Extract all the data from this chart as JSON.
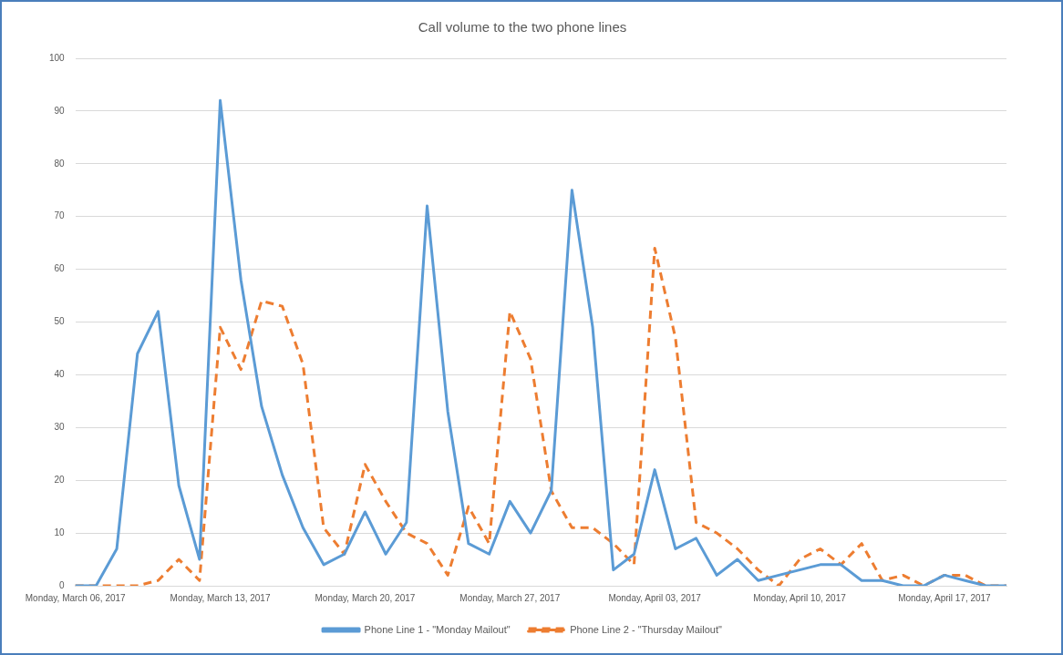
{
  "chart_data": {
    "type": "line",
    "title": "Call volume to the two phone lines",
    "categories": [
      "Monday, March 06, 2017",
      null,
      null,
      null,
      null,
      null,
      null,
      "Monday, March 13, 2017",
      null,
      null,
      null,
      null,
      null,
      null,
      "Monday, March 20, 2017",
      null,
      null,
      null,
      null,
      null,
      null,
      "Monday, March 27, 2017",
      null,
      null,
      null,
      null,
      null,
      null,
      "Monday, April 03, 2017",
      null,
      null,
      null,
      null,
      null,
      null,
      "Monday, April 10, 2017",
      null,
      null,
      null,
      null,
      null,
      null,
      "Monday, April 17, 2017",
      null,
      null,
      null
    ],
    "series": [
      {
        "name": "Phone Line 1 - \"Monday Mailout\"",
        "color": "#5b9bd5",
        "line_style": "solid",
        "values": [
          0,
          0,
          7,
          44,
          52,
          19,
          5,
          92,
          58,
          34,
          21,
          11,
          4,
          6,
          14,
          6,
          12,
          72,
          33,
          8,
          6,
          16,
          10,
          18,
          75,
          49,
          3,
          6,
          22,
          7,
          9,
          2,
          5,
          1,
          2,
          3,
          4,
          4,
          1,
          1,
          0,
          0,
          2,
          1,
          0,
          0
        ]
      },
      {
        "name": "Phone Line 2 - \"Thursday Mailout\"",
        "color": "#ed7d31",
        "line_style": "dashed",
        "values": [
          0,
          0,
          0,
          0,
          1,
          5,
          1,
          49,
          41,
          54,
          53,
          42,
          11,
          6,
          23,
          16,
          10,
          8,
          2,
          15,
          8,
          52,
          43,
          18,
          11,
          11,
          8,
          4,
          64,
          47,
          12,
          10,
          7,
          3,
          0,
          5,
          7,
          4,
          8,
          1,
          2,
          0,
          2,
          2,
          0,
          0
        ]
      }
    ],
    "ylim": [
      0,
      100
    ],
    "yticks": [
      0,
      10,
      20,
      30,
      40,
      50,
      60,
      70,
      80,
      90,
      100
    ],
    "grid": "y",
    "legend": "bottom",
    "marker": "none"
  }
}
